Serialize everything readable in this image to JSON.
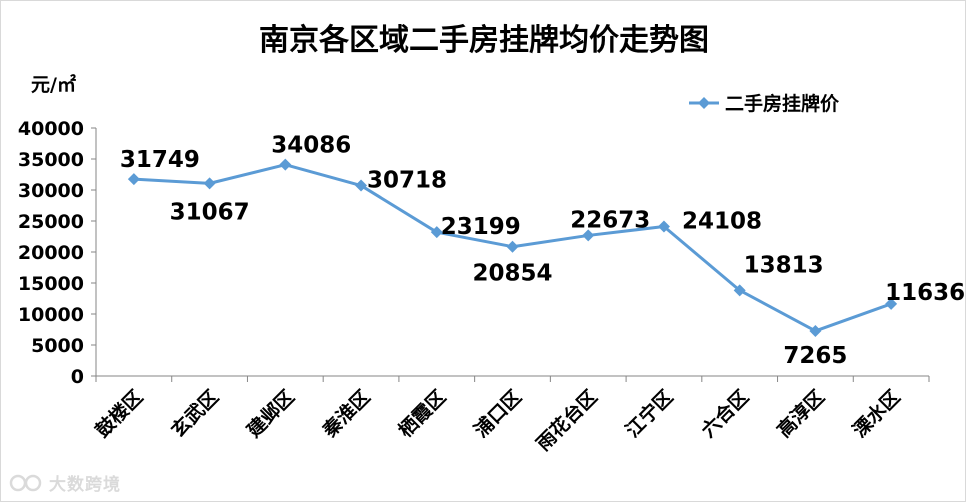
{
  "chart_data": {
    "type": "line",
    "title": "南京各区域二手房挂牌均价走势图",
    "ylabel": "元/㎡",
    "xlabel": "",
    "ylim": [
      0,
      40000
    ],
    "yticks": [
      0,
      5000,
      10000,
      15000,
      20000,
      25000,
      30000,
      35000,
      40000
    ],
    "grid": false,
    "legend_position": "top-right",
    "categories": [
      "鼓楼区",
      "玄武区",
      "建邺区",
      "秦淮区",
      "栖霞区",
      "浦口区",
      "雨花台区",
      "江宁区",
      "六合区",
      "高淳区",
      "溧水区"
    ],
    "series": [
      {
        "name": "二手房挂牌价",
        "color": "#5b9bd5",
        "marker": "diamond",
        "values": [
          31749,
          31067,
          34086,
          30718,
          23199,
          20854,
          22673,
          24108,
          13813,
          7265,
          11636
        ],
        "labels": [
          "31749",
          "31067",
          "34086",
          "30718",
          "23199",
          "20854",
          "22673",
          "24108",
          "13813",
          "7265",
          "11636"
        ]
      }
    ]
  },
  "watermark": {
    "text": "大数跨境",
    "icon": "logo-mark-icon"
  }
}
